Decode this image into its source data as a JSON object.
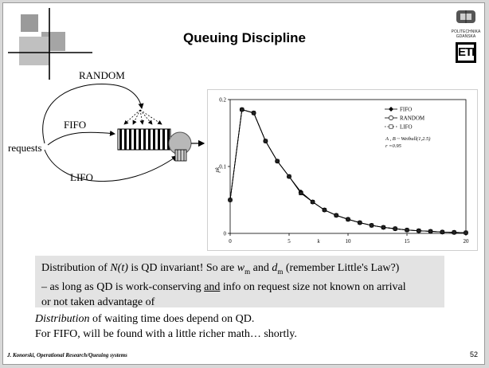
{
  "slide": {
    "title": "Queuing Discipline",
    "logo_text_line1": "POLITECHNIKA",
    "logo_text_line2": "GDAŃSKA",
    "logo_mark": "ETI",
    "footer": "J. Konorski, Operational Research/Queuing systems",
    "page_number": "52"
  },
  "diagram": {
    "random_label": "RANDOM",
    "fifo_label": "FIFO",
    "lifo_label": "LIFO",
    "requests_label": "requests"
  },
  "callout": {
    "t1": "Distribution of ",
    "t2": "N(t)",
    "t3": " is QD invariant! So are ",
    "t4": "w",
    "t5": "m",
    "t6": " and ",
    "t7": "d",
    "t8": "m",
    "t9": " (remember Little's Law?)",
    "t10": "– as long as QD is work-conserving ",
    "t11": "and",
    "t12": " info on request size not known on arrival",
    "t13": "or not taken advantage of"
  },
  "body": {
    "line1_italic": "Distribution",
    "line1_rest": " of waiting time does depend on QD.",
    "line2": "For FIFO, will be found with a little richer math… shortly."
  },
  "chart_data": {
    "type": "line",
    "x": [
      0,
      1,
      2,
      3,
      4,
      5,
      6,
      7,
      8,
      9,
      10,
      11,
      12,
      13,
      14,
      15,
      16,
      17,
      18,
      19,
      20
    ],
    "series": [
      {
        "name": "FIFO",
        "values": [
          0.05,
          0.185,
          0.18,
          0.138,
          0.108,
          0.085,
          0.062,
          0.047,
          0.035,
          0.027,
          0.021,
          0.016,
          0.012,
          0.009,
          0.007,
          0.005,
          0.004,
          0.003,
          0.002,
          0.0015,
          0.001
        ]
      },
      {
        "name": "RANDOM",
        "values": [
          0.05,
          0.185,
          0.18,
          0.138,
          0.108,
          0.085,
          0.061,
          0.047,
          0.035,
          0.027,
          0.021,
          0.016,
          0.012,
          0.009,
          0.007,
          0.005,
          0.004,
          0.003,
          0.002,
          0.0015,
          0.001
        ]
      },
      {
        "name": "LIFO",
        "values": [
          0.05,
          0.185,
          0.18,
          0.138,
          0.108,
          0.085,
          0.06,
          0.047,
          0.035,
          0.027,
          0.021,
          0.016,
          0.012,
          0.009,
          0.007,
          0.005,
          0.004,
          0.003,
          0.002,
          0.0015,
          0.001
        ]
      }
    ],
    "xlabel": "k",
    "ylabel": "pk",
    "xlim": [
      0,
      20
    ],
    "ylim": [
      0,
      0.2
    ],
    "xticks": [
      "0",
      "5",
      "10",
      "15",
      "20"
    ],
    "yticks": [
      "0",
      "0.1",
      "0.2"
    ],
    "legend_position": "top-right",
    "annotation_line1": "A , B ~ Weibull(1,2.5)",
    "annotation_line2": "r =0.95"
  }
}
